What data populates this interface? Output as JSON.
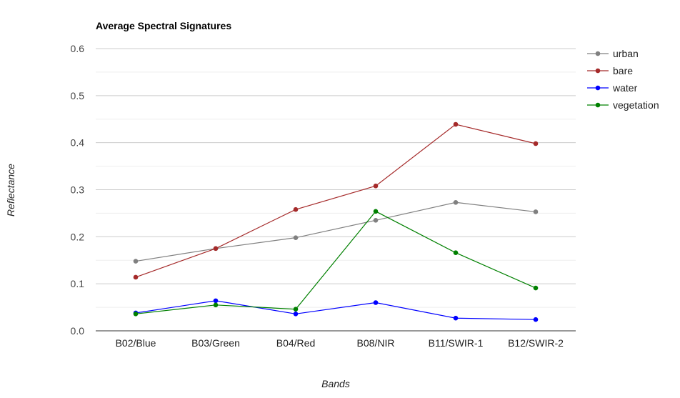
{
  "chart_data": {
    "type": "line",
    "title": "Average Spectral Signatures",
    "xlabel": "Bands",
    "ylabel": "Reflectance",
    "categories": [
      "B02/Blue",
      "B03/Green",
      "B04/Red",
      "B08/NIR",
      "B11/SWIR-1",
      "B12/SWIR-2"
    ],
    "ylim": [
      0,
      0.6
    ],
    "yticks": [
      "0.0",
      "0.1",
      "0.2",
      "0.3",
      "0.4",
      "0.5",
      "0.6"
    ],
    "grid": true,
    "legend_position": "right",
    "series": [
      {
        "name": "urban",
        "color": "#808080",
        "values": [
          0.148,
          0.175,
          0.198,
          0.235,
          0.273,
          0.253
        ]
      },
      {
        "name": "bare",
        "color": "#a52a2a",
        "values": [
          0.114,
          0.175,
          0.258,
          0.308,
          0.439,
          0.398
        ]
      },
      {
        "name": "water",
        "color": "#0000ff",
        "values": [
          0.038,
          0.064,
          0.036,
          0.06,
          0.027,
          0.024
        ]
      },
      {
        "name": "vegetation",
        "color": "#008000",
        "values": [
          0.036,
          0.055,
          0.046,
          0.254,
          0.166,
          0.091
        ]
      }
    ]
  }
}
